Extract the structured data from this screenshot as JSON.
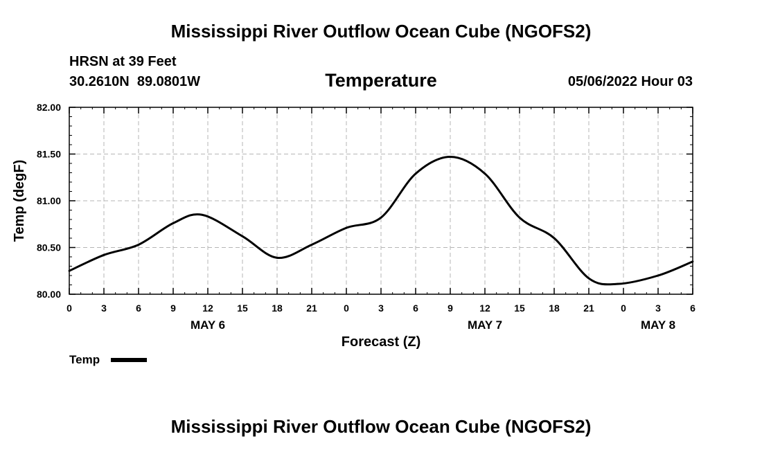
{
  "title": "Mississippi River Outflow Ocean Cube (NGOFS2)",
  "station": {
    "name_depth": "HRSN at 39 Feet",
    "coords": "30.2610N  89.0801W",
    "datetime": "05/06/2022 Hour 03"
  },
  "footer_title": "Mississippi River Outflow Ocean Cube (NGOFS2)",
  "chart_data": {
    "type": "line",
    "title": "Temperature",
    "xlabel": "Forecast (Z)",
    "ylabel": "Temp (degF)",
    "xlim": [
      0,
      54
    ],
    "ylim": [
      80.0,
      82.0
    ],
    "grid": true,
    "x_tick_values": [
      0,
      3,
      6,
      9,
      12,
      15,
      18,
      21,
      24,
      27,
      30,
      33,
      36,
      39,
      42,
      45,
      48,
      51,
      54
    ],
    "x_tick_labels": [
      "0",
      "3",
      "6",
      "9",
      "12",
      "15",
      "18",
      "21",
      "0",
      "3",
      "6",
      "9",
      "12",
      "15",
      "18",
      "21",
      "0",
      "3",
      "6"
    ],
    "y_tick_values": [
      80.0,
      80.5,
      81.0,
      81.5,
      82.0
    ],
    "y_tick_labels": [
      "80.00",
      "80.50",
      "81.00",
      "81.50",
      "82.00"
    ],
    "day_labels": [
      {
        "x": 12,
        "label": "MAY 6"
      },
      {
        "x": 36,
        "label": "MAY 7"
      },
      {
        "x": 51,
        "label": "MAY 8"
      }
    ],
    "legend": {
      "label": "Temp",
      "position": "bottom-left"
    },
    "series": [
      {
        "name": "Temp",
        "x": [
          0,
          3,
          6,
          9,
          11.5,
          15,
          18,
          21,
          24,
          27,
          30,
          33,
          36,
          39,
          42,
          45,
          47.5,
          51,
          54
        ],
        "values": [
          80.25,
          80.42,
          80.53,
          80.76,
          80.85,
          80.62,
          80.39,
          80.53,
          80.71,
          80.82,
          81.29,
          81.47,
          81.29,
          80.82,
          80.6,
          80.17,
          80.11,
          80.2,
          80.35
        ]
      }
    ]
  }
}
